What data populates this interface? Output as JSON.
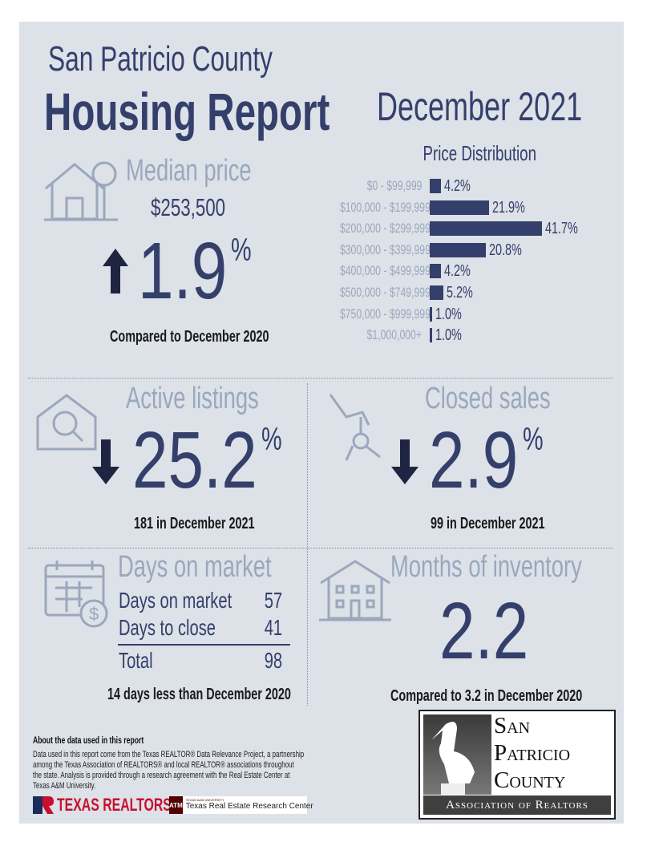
{
  "header": {
    "county": "San Patricio County",
    "title": "Housing Report",
    "period": "December 2021"
  },
  "median": {
    "title": "Median price",
    "price": "$253,500",
    "change": "1.9",
    "pct": "%",
    "direction": "up",
    "note": "Compared to December 2020"
  },
  "chart_data": {
    "type": "bar",
    "title": "Price Distribution",
    "orientation": "horizontal",
    "categories": [
      "$0 - $99,999",
      "$100,000 - $199,999",
      "$200,000 - $299,999",
      "$300,000 - $399,999",
      "$400,000 - $499,999",
      "$500,000 - $749,999",
      "$750,000 - $999,999",
      "$1,000,000+"
    ],
    "values": [
      4.2,
      21.9,
      41.7,
      20.8,
      4.2,
      5.2,
      1.0,
      1.0
    ],
    "labels": [
      "4.2%",
      "21.9%",
      "41.7%",
      "20.8%",
      "4.2%",
      "5.2%",
      "1.0%",
      "1.0%"
    ],
    "unit": "%"
  },
  "active": {
    "title": "Active listings",
    "change": "25.2",
    "pct": "%",
    "direction": "down",
    "note": "181 in December 2021"
  },
  "closed": {
    "title": "Closed sales",
    "change": "2.9",
    "pct": "%",
    "direction": "down",
    "note": "99 in December 2021"
  },
  "dom": {
    "title": "Days on market",
    "rows": [
      {
        "label": "Days on market",
        "value": "57"
      },
      {
        "label": "Days to close",
        "value": "41"
      }
    ],
    "total_label": "Total",
    "total_value": "98",
    "note": "14 days less than December 2020"
  },
  "inventory": {
    "title": "Months of inventory",
    "value": "2.2",
    "note": "Compared to 3.2 in December 2020"
  },
  "about": {
    "title": "About the data used in this report",
    "text": "Data used in this report come from the Texas REALTOR® Data Relevance Project, a partnership among the Texas Association of REALTORS® and local REALTOR® associations throughout the state. Analysis is provided through a research agreement with the Real Estate Center at Texas A&M University."
  },
  "logos": {
    "tr": "TEXAS REALTORS",
    "tamu_small": "TEXAS A&M UNIVERSITY",
    "tamu": "Texas Real Estate Research Center",
    "tamu_mark": "ATM",
    "spc": [
      "San",
      "Patricio",
      "County"
    ],
    "spc_sub": "Association of Realtors"
  },
  "colors": {
    "navy": "#34406b",
    "light": "#9aa8bd",
    "bg": "#dde1e8"
  }
}
